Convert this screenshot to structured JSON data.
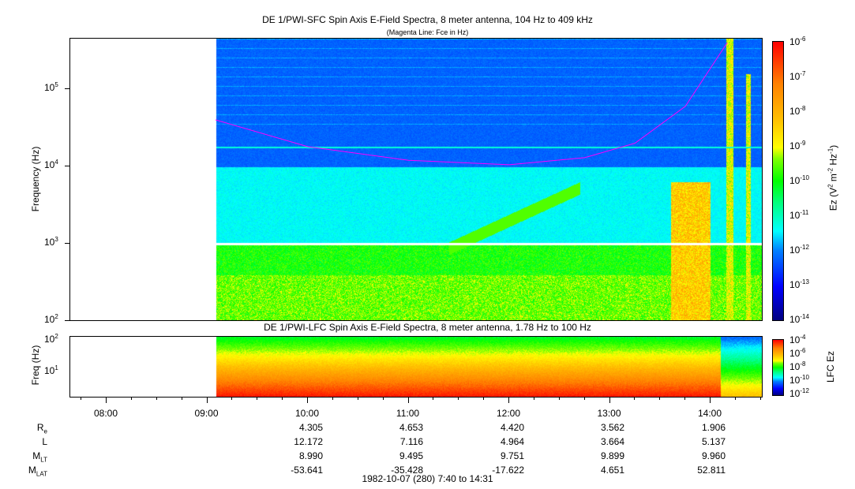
{
  "chart_data": [
    {
      "type": "heatmap",
      "title": "DE 1/PWI-SFC  Spin Axis E-Field Spectra, 8 meter antenna, 104 Hz to 409 kHz",
      "subtitle": "(Magenta Line: Fce in Hz)",
      "ylabel": "Frequency (Hz)",
      "yscale": "log",
      "ylim": [
        100,
        409000
      ],
      "yticks": [
        "10^2",
        "10^3",
        "10^4",
        "10^5"
      ],
      "y_tick_values": [
        100,
        1000,
        10000,
        100000
      ],
      "data_start": "09:05",
      "fce_curve_hz": [
        {
          "t": "09:05",
          "f": 40000
        },
        {
          "t": "10:00",
          "f": 18000
        },
        {
          "t": "11:00",
          "f": 12000
        },
        {
          "t": "12:00",
          "f": 10500
        },
        {
          "t": "12:45",
          "f": 13000
        },
        {
          "t": "13:15",
          "f": 20000
        },
        {
          "t": "13:45",
          "f": 60000
        },
        {
          "t": "14:10",
          "f": 400000
        }
      ],
      "colorbar": {
        "label": "Ez (V2 m-2 Hz-1)",
        "range": [
          1e-14,
          1e-06
        ],
        "ticks": [
          "10^-6",
          "10^-7",
          "10^-8",
          "10^-9",
          "10^-10",
          "10^-11",
          "10^-12",
          "10^-13",
          "10^-14"
        ]
      }
    },
    {
      "type": "heatmap",
      "title": "DE 1/PWI-LFC  Spin Axis E-Field Spectra, 8 meter antenna, 1.78 Hz to 100 Hz",
      "ylabel": "Freq (Hz)",
      "yscale": "log",
      "ylim": [
        1.78,
        100
      ],
      "yticks": [
        "10^2",
        "10^1"
      ],
      "colorbar": {
        "label": "LFC Ez",
        "range": [
          1e-12,
          0.0001
        ],
        "ticks": [
          "10^-4",
          "10^-6",
          "10^-8",
          "10^-10",
          "10^-12"
        ]
      }
    }
  ],
  "xaxis": {
    "ticks": [
      "08:00",
      "09:00",
      "10:00",
      "11:00",
      "12:00",
      "13:00",
      "14:00"
    ],
    "footer": "1982-10-07 (280) 7:40 to 14:31"
  },
  "ephemeris": [
    {
      "label": "R",
      "sub": "e",
      "values": [
        "4.305",
        "4.653",
        "4.420",
        "3.562",
        "1.906"
      ]
    },
    {
      "label": "L",
      "sub": "",
      "values": [
        "12.172",
        "7.116",
        "4.964",
        "3.664",
        "5.137"
      ]
    },
    {
      "label": "M",
      "sub": "LT",
      "values": [
        "8.990",
        "9.495",
        "9.751",
        "9.899",
        "9.960"
      ]
    },
    {
      "label": "M",
      "sub": "LAT",
      "values": [
        "-53.641",
        "-35.428",
        "-17.622",
        "4.651",
        "52.811"
      ]
    }
  ]
}
